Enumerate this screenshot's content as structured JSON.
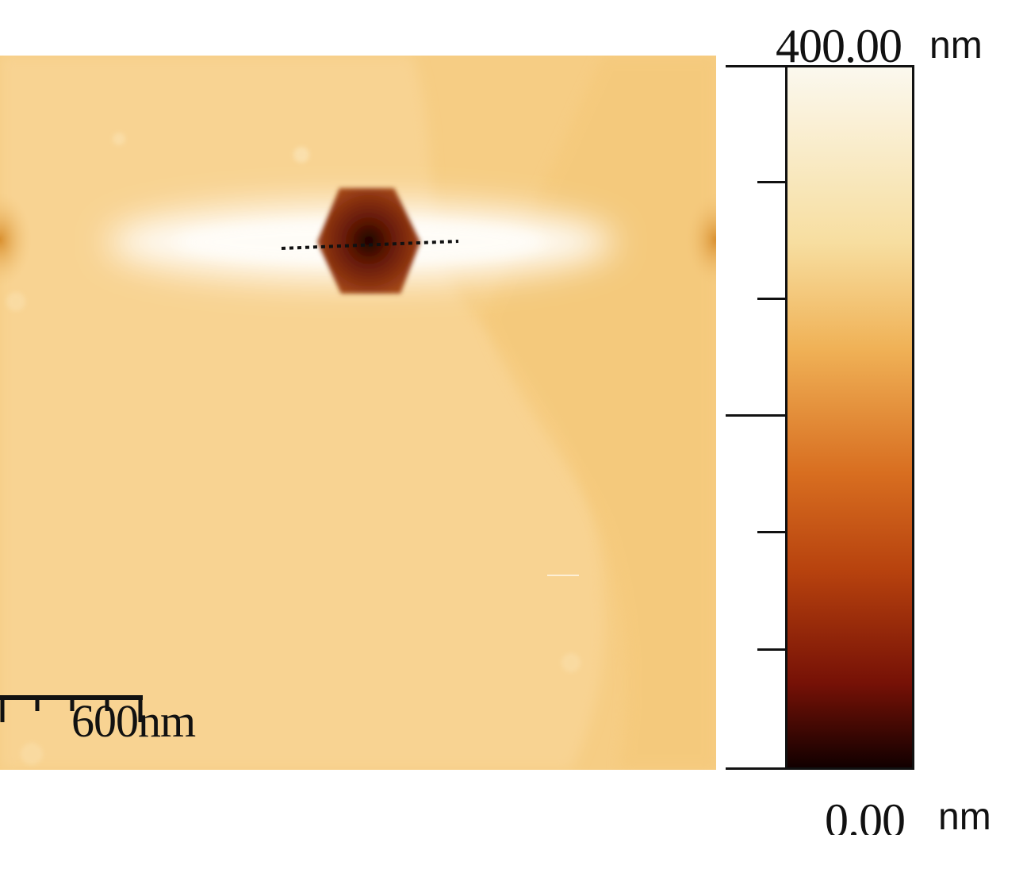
{
  "scale_bar": {
    "label": "600nm"
  },
  "colorbar": {
    "max_value": "400.00",
    "min_value": "0.00",
    "unit": "nm",
    "colors": {
      "top": "#fbf8ee",
      "upper": "#f7dea0",
      "mid_upper": "#f0b257",
      "mid": "#d86e20",
      "mid_lower": "#b7420e",
      "lower": "#761106",
      "bottom": "#120000"
    }
  },
  "image": {
    "background_color": "#f6cd84",
    "feature_color": "#6b1a06"
  }
}
